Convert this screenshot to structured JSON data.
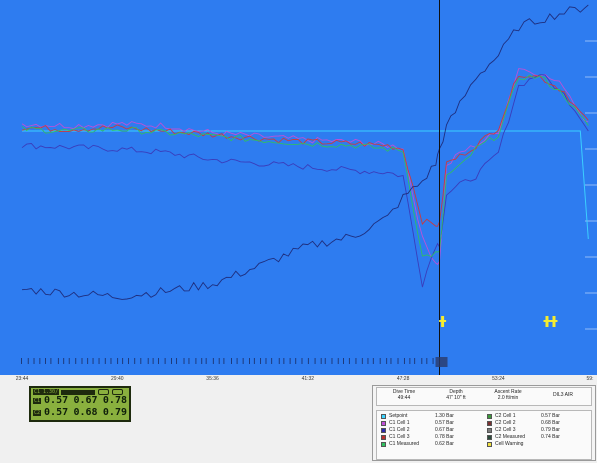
{
  "chart_data": {
    "type": "line",
    "title": "",
    "x_axis": {
      "label": "",
      "tick_labels": [
        "23:44",
        "29:40",
        "35:36",
        "41:32",
        "47:28",
        "53:24",
        "59:"
      ]
    },
    "y_axis": {
      "label": "",
      "ylim": [
        0.0,
        2.0
      ],
      "gridlines": [
        0.2,
        0.4,
        0.6,
        0.8,
        1.0,
        1.2,
        1.4,
        1.6,
        1.8
      ]
    },
    "cursor_time": "49:44",
    "x": [
      "23:44",
      "26:40",
      "29:40",
      "32:40",
      "35:36",
      "38:30",
      "41:32",
      "44:30",
      "46:30",
      "47:28",
      "48:40",
      "49:30",
      "49:44",
      "50:10",
      "51:00",
      "52:00",
      "53:24",
      "54:40",
      "56:00",
      "57:30",
      "58:30",
      "59:00"
    ],
    "series": [
      {
        "name": "Setpoint",
        "color": "#3cd4ff",
        "values": [
          1.3,
          1.3,
          1.3,
          1.3,
          1.3,
          1.3,
          1.3,
          1.3,
          1.3,
          1.3,
          1.3,
          1.3,
          1.3,
          1.3,
          1.3,
          1.3,
          1.3,
          1.3,
          1.3,
          1.3,
          1.3,
          0.7
        ]
      },
      {
        "name": "C1 Cell 1",
        "color": "#c050d8",
        "values": [
          1.34,
          1.33,
          1.34,
          1.33,
          1.29,
          1.27,
          1.25,
          1.24,
          1.22,
          1.21,
          0.7,
          0.57,
          0.57,
          1.1,
          1.18,
          1.22,
          1.3,
          1.65,
          1.62,
          1.55,
          1.4,
          1.35
        ]
      },
      {
        "name": "C1 Cell 2",
        "color": "#3a3ab8",
        "values": [
          1.22,
          1.21,
          1.2,
          1.18,
          1.14,
          1.12,
          1.1,
          1.08,
          1.07,
          1.05,
          0.45,
          0.67,
          0.67,
          0.95,
          1.0,
          1.05,
          1.18,
          1.55,
          1.62,
          1.5,
          1.38,
          1.3
        ]
      },
      {
        "name": "C1 Cell 3",
        "color": "#d03838",
        "values": [
          1.32,
          1.31,
          1.32,
          1.3,
          1.28,
          1.26,
          1.24,
          1.23,
          1.22,
          1.2,
          0.8,
          0.78,
          0.78,
          1.12,
          1.16,
          1.22,
          1.32,
          1.62,
          1.6,
          1.52,
          1.4,
          1.36
        ]
      },
      {
        "name": "C1 Measured",
        "color": "#30c060",
        "values": [
          1.31,
          1.3,
          1.31,
          1.29,
          1.27,
          1.25,
          1.23,
          1.22,
          1.2,
          1.19,
          0.6,
          0.62,
          0.62,
          1.05,
          1.1,
          1.2,
          1.28,
          1.6,
          1.6,
          1.5,
          1.38,
          1.33
        ]
      },
      {
        "name": "Depth",
        "color": "#1e2a78",
        "values": [
          0.42,
          0.4,
          0.38,
          0.41,
          0.45,
          0.55,
          0.66,
          0.72,
          0.82,
          0.93,
          1.02,
          1.12,
          1.2,
          1.32,
          1.45,
          1.6,
          1.72,
          1.88,
          1.92,
          1.96,
          1.98,
          2.0
        ]
      }
    ]
  },
  "handset": {
    "setpoint_label": "C1 1.30/",
    "c1_tag": "C1",
    "c2_tag": "C2",
    "c1_values": [
      "0.57",
      "0.67",
      "0.78"
    ],
    "c2_values": [
      "0.57",
      "0.68",
      "0.79"
    ]
  },
  "dive_stats": [
    {
      "label": "Dive Time",
      "value": "49:44"
    },
    {
      "label": "Depth",
      "value": "47' 10\" ft"
    },
    {
      "label": "Ascent Rate",
      "value": "2.0 ft/min"
    },
    {
      "label": "",
      "value": "DIL3 AIR"
    }
  ],
  "legend": [
    {
      "name": "Setpoint",
      "value": "1.30 Bar",
      "color": "#3cd4ff"
    },
    {
      "name": "C1 Cell 1",
      "value": "0.57 Bar",
      "color": "#c050d8"
    },
    {
      "name": "C1 Cell 2",
      "value": "0.67 Bar",
      "color": "#2a2ab0"
    },
    {
      "name": "C1 Cell 3",
      "value": "0.78 Bar",
      "color": "#b83030"
    },
    {
      "name": "C1 Measured",
      "value": "0.62 Bar",
      "color": "#30c060"
    },
    {
      "name": "C2 Cell 1",
      "value": "0.57 Bar",
      "color": "#3a9a3a"
    },
    {
      "name": "C2 Cell 2",
      "value": "0.68 Bar",
      "color": "#7a3030"
    },
    {
      "name": "C2 Cell 3",
      "value": "0.79 Bar",
      "color": "#7a7a7a"
    },
    {
      "name": "C2 Measured",
      "value": "0.74 Bar",
      "color": "#2a4a3a"
    },
    {
      "name": "Cell Warning",
      "value": "",
      "color": "#f0e040"
    }
  ]
}
